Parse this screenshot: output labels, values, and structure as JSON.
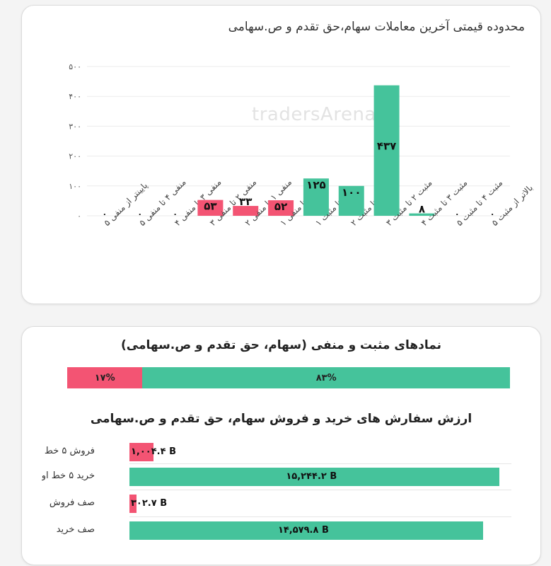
{
  "chart_data": [
    {
      "type": "bar",
      "title": "محدوده قیمتی آخرین معاملات سهام،حق تقدم و ص.سهامی",
      "categories": [
        "پایینتر از منفی ۵",
        "منفی ۴ تا منفی ۵",
        "منفی ۳ تا منفی ۴",
        "منفی ۲ تا منفی ۳",
        "منفی ۱ تا منفی ۲",
        "صفر تا منفی ۱",
        "صفر تا مثبت ۱",
        "مثبت ۱ تا مثبت ۲",
        "مثبت ۲ تا مثبت ۳",
        "مثبت ۳ تا مثبت ۴",
        "مثبت ۴ تا مثبت ۵",
        "بالاتر از مثبت ۵"
      ],
      "values": [
        0,
        0,
        0,
        53,
        33,
        52,
        125,
        100,
        437,
        8,
        0,
        0
      ],
      "value_labels": [
        "۰",
        "۰",
        "۰",
        "۵۳",
        "۳۳",
        "۵۲",
        "۱۲۵",
        "۱۰۰",
        "۴۳۷",
        "۸",
        "۰",
        "۰"
      ],
      "colors": [
        "#f35473",
        "#f35473",
        "#f35473",
        "#f35473",
        "#f35473",
        "#f35473",
        "#45c39b",
        "#45c39b",
        "#45c39b",
        "#45c39b",
        "#45c39b",
        "#45c39b"
      ],
      "yticks": [
        0,
        100,
        200,
        300,
        400,
        500
      ],
      "ytick_labels": [
        "۰",
        "۱۰۰",
        "۲۰۰",
        "۳۰۰",
        "۴۰۰",
        "۵۰۰"
      ],
      "ylim": [
        0,
        500
      ],
      "grid": true,
      "watermark": "tradersArena.ir"
    },
    {
      "type": "bar",
      "orientation": "stacked-horizontal",
      "title": "نمادهای مثبت و منفی (سهام، حق تقدم و ص.سهامی)",
      "values_percent": [
        17,
        83
      ],
      "value_labels": [
        "۱۷%",
        "۸۳%"
      ],
      "colors": [
        "#f35473",
        "#45c39b"
      ]
    },
    {
      "type": "bar",
      "orientation": "horizontal",
      "title": "ارزش سفارش های خرید و فروش سهام، حق تقدم و ص.سهامی",
      "categories": [
        "فروش ۵ خط",
        "خرید ۵ خط او",
        "صف فروش",
        "صف خرید"
      ],
      "values": [
        1004.4,
        15244.2,
        302.7,
        14579.8
      ],
      "value_labels": [
        "۱,۰۰۴.۴ B",
        "۱۵,۲۴۴.۲ B",
        "۳۰۲.۷ B",
        "۱۴,۵۷۹.۸ B"
      ],
      "unit": "B",
      "colors": [
        "#f35473",
        "#45c39b",
        "#f35473",
        "#45c39b"
      ],
      "xlim": [
        0,
        15750
      ]
    }
  ]
}
